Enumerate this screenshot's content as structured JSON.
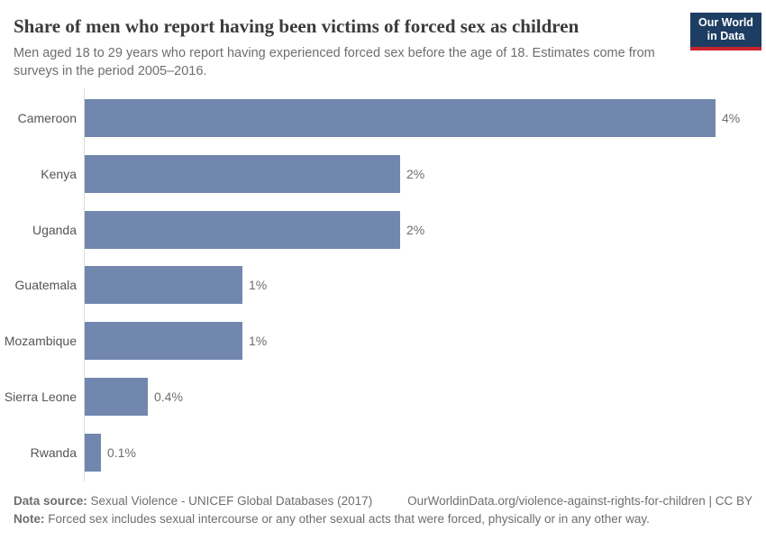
{
  "header": {
    "title": "Share of men who report having been victims of forced sex as children",
    "subtitle": "Men aged 18 to 29 years who report having experienced forced sex before the age of 18. Estimates come from surveys in the period 2005–2016.",
    "logo": {
      "line1": "Our World",
      "line2": "in Data",
      "bg_color": "#1d3d63",
      "accent_color": "#c8232c"
    }
  },
  "chart_data": {
    "type": "bar",
    "orientation": "horizontal",
    "title": "Share of men who report having been victims of forced sex as children",
    "categories": [
      "Cameroon",
      "Kenya",
      "Uganda",
      "Guatemala",
      "Mozambique",
      "Sierra Leone",
      "Rwanda"
    ],
    "values": [
      4,
      2,
      2,
      1,
      1,
      0.4,
      0.1
    ],
    "value_labels": [
      "4%",
      "2%",
      "2%",
      "1%",
      "1%",
      "0.4%",
      "0.1%"
    ],
    "xlabel": "",
    "ylabel": "",
    "xlim": [
      0,
      4
    ],
    "grid": false,
    "legend": "none",
    "bar_color": "#7187ad",
    "axis_color": "#dcdcdc"
  },
  "footer": {
    "datasource_label": "Data source:",
    "datasource_text": " Sexual Violence - UNICEF Global Databases (2017)",
    "url_text": "OurWorldinData.org/violence-against-rights-for-children | CC BY",
    "note_label": "Note:",
    "note_text": " Forced sex includes sexual intercourse or any other sexual acts that were forced, physically or in any other way."
  }
}
